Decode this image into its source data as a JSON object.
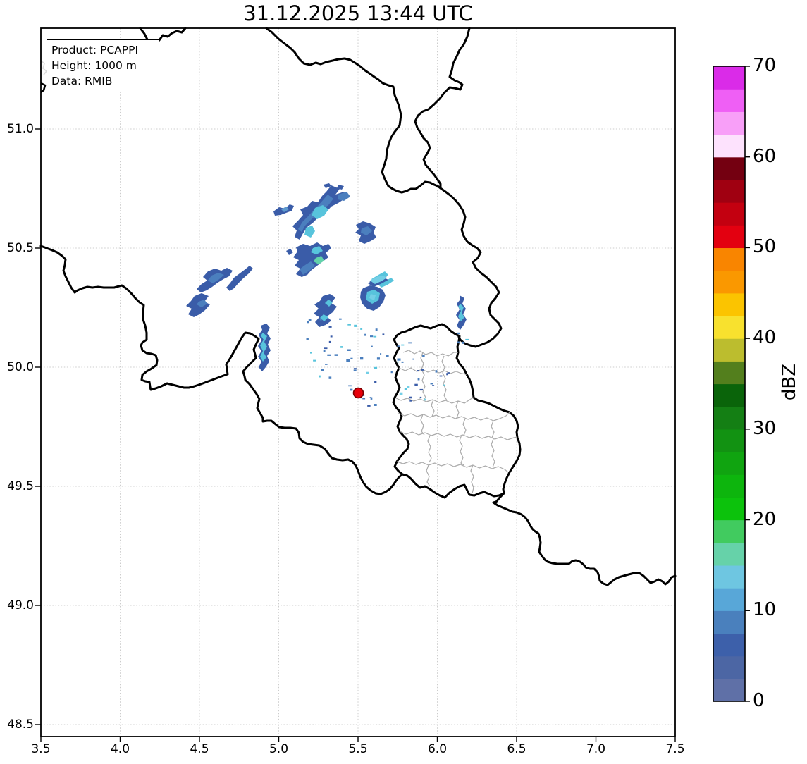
{
  "title": "31.12.2025 13:44 UTC",
  "info_box": {
    "lines": [
      "Product: PCAPPI",
      "Height: 1000 m",
      "Data: RMIB"
    ]
  },
  "axes": {
    "x_ticks": [
      "3.5",
      "4.0",
      "4.5",
      "5.0",
      "5.5",
      "6.0",
      "6.5",
      "7.0",
      "7.5"
    ],
    "y_ticks": [
      "51.0",
      "50.5",
      "50.0",
      "49.5",
      "49.0",
      "48.5"
    ],
    "gridline_color": "#cccccc",
    "spine_color": "#000000"
  },
  "colorbar": {
    "label": "dBZ",
    "tick_labels": [
      "0",
      "10",
      "20",
      "30",
      "40",
      "50",
      "60",
      "70"
    ],
    "min_dbz": 0,
    "max_dbz": 70,
    "segment_step_dbz": 2.5,
    "segment_colors_bottom_to_top": [
      "#5F70A7",
      "#4C66A4",
      "#3D60AA",
      "#4A80BD",
      "#58A7D8",
      "#6EC6E1",
      "#66D2A9",
      "#41CB5F",
      "#0CC20C",
      "#0DB50D",
      "#10A410",
      "#129212",
      "#147F14",
      "#0A640A",
      "#537F1D",
      "#BCBD2E",
      "#F8E12E",
      "#FBC400",
      "#FA9800",
      "#F98500",
      "#E30010",
      "#C30010",
      "#A00011",
      "#740011",
      "#FDE2FD",
      "#F89FF8",
      "#EF5FF5",
      "#DA2BE8"
    ]
  },
  "map": {
    "country_border_color": "#000000",
    "canton_border_color": "#ABABAB",
    "radar_marker": {
      "shape": "circle",
      "fill": "#E8000B",
      "edge": "#7A0000"
    },
    "echo_colors": {
      "dark_blue": "#3A5CA8",
      "blue": "#4B7FBE",
      "light_blue": "#5E99CE",
      "cyan": "#58C4DC",
      "pale_cyan": "#74CFE6",
      "teal": "#62D2AA"
    }
  },
  "chart_data": {
    "type": "heatmap",
    "title": "31.12.2025 13:44 UTC",
    "x_range_deg_lon": [
      3.5,
      7.5
    ],
    "y_range_deg_lat": [
      48.45,
      51.42
    ],
    "grid": true,
    "colorbar_label": "dBZ",
    "colorbar_range": [
      0,
      70
    ],
    "colorbar_tick_step": 10,
    "radar_site_lon_lat": [
      5.5,
      49.89
    ],
    "echo_clusters_lon_lat_maxdbz": [
      [
        5.02,
        50.67,
        8
      ],
      [
        5.26,
        50.65,
        15
      ],
      [
        5.2,
        50.45,
        15
      ],
      [
        5.55,
        50.57,
        9
      ],
      [
        5.65,
        50.38,
        14
      ],
      [
        5.6,
        50.31,
        16
      ],
      [
        5.38,
        50.23,
        13
      ],
      [
        6.16,
        50.23,
        13
      ],
      [
        4.58,
        50.31,
        9
      ],
      [
        4.77,
        50.37,
        8
      ],
      [
        4.92,
        50.09,
        13
      ]
    ]
  }
}
